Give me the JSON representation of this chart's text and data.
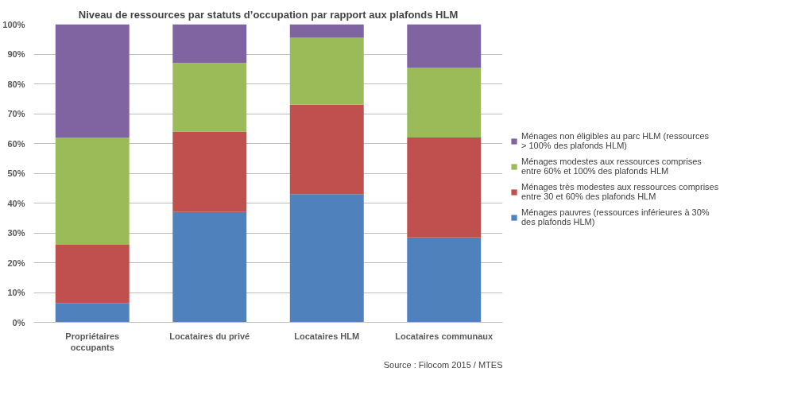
{
  "chart_data": {
    "type": "bar",
    "stacked": true,
    "title": "Niveau de ressources par statuts d’occupation par rapport aux plafonds HLM",
    "categories": [
      "Propriétaires occupants",
      "Locataires du privé",
      "Locataires HLM",
      "Locataires communaux"
    ],
    "series": [
      {
        "name": "Ménages pauvres (ressources inférieures à 30% des plafonds HLM)",
        "color": "#4f81bd",
        "values": [
          6.5,
          37,
          43,
          28.5
        ]
      },
      {
        "name": "Ménages très modestes aux ressources comprises entre 30 et 60% des plafonds HLM",
        "color": "#c0504d",
        "values": [
          19.5,
          27,
          30,
          33.5
        ]
      },
      {
        "name": "Ménages modestes aux ressources comprises entre 60% et 100% des plafonds HLM",
        "color": "#9bbb59",
        "values": [
          36,
          23,
          22.5,
          23.5
        ]
      },
      {
        "name": "Ménages non éligibles au parc HLM (ressources > 100% des plafonds HLM)",
        "color": "#8064a2",
        "values": [
          38,
          13,
          4.5,
          14.5
        ]
      }
    ],
    "ylim": [
      0,
      100
    ],
    "yticks": [
      {
        "value": 0,
        "label": "0%"
      },
      {
        "value": 10,
        "label": "10%"
      },
      {
        "value": 20,
        "label": "20%"
      },
      {
        "value": 30,
        "label": "30%"
      },
      {
        "value": 40,
        "label": "40%"
      },
      {
        "value": 50,
        "label": "50%"
      },
      {
        "value": 60,
        "label": "60%"
      },
      {
        "value": 70,
        "label": "70%"
      },
      {
        "value": 80,
        "label": "80%"
      },
      {
        "value": 90,
        "label": "90%"
      },
      {
        "value": 100,
        "label": "100%"
      }
    ],
    "grid": "y",
    "legend": "right",
    "annotations": [
      "Source : Filocom 2015 / MTES"
    ]
  }
}
